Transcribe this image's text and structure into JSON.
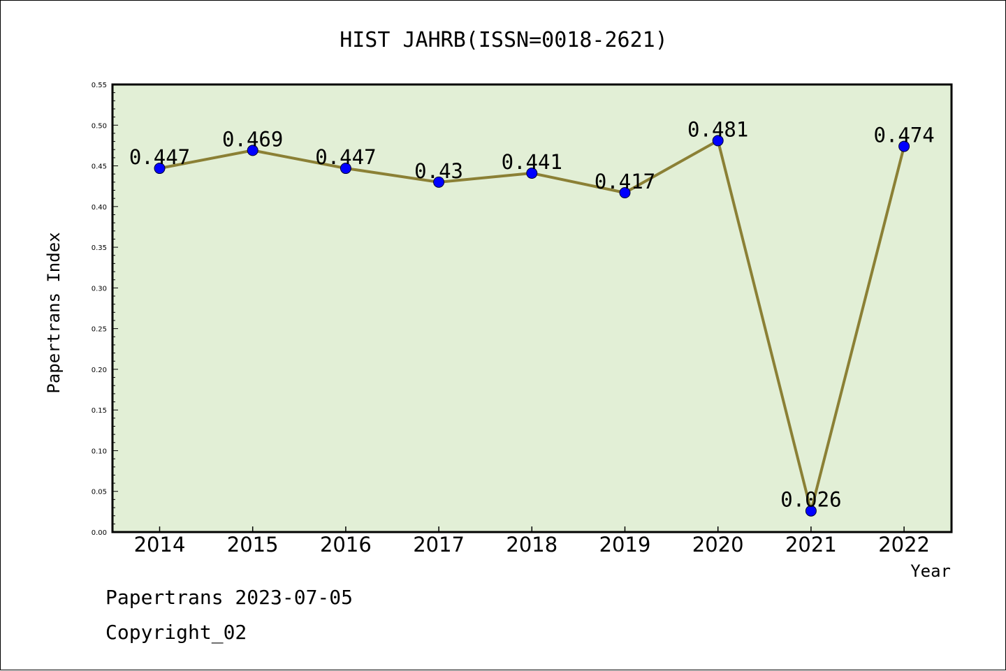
{
  "chart_data": {
    "type": "line",
    "title": "HIST JAHRB(ISSN=0018-2621)",
    "xlabel": "Year",
    "ylabel": "Papertrans Index",
    "categories": [
      "2014",
      "2015",
      "2016",
      "2017",
      "2018",
      "2019",
      "2020",
      "2021",
      "2022"
    ],
    "series": [
      {
        "values": [
          0.447,
          0.469,
          0.447,
          0.43,
          0.441,
          0.417,
          0.481,
          0.026,
          0.474
        ],
        "data_labels": [
          "0.447",
          "0.469",
          "0.447",
          "0.43",
          "0.441",
          "0.417",
          "0.481",
          "0.026",
          "0.474"
        ],
        "line_color": "#8b8035",
        "marker_color": "#0000ff"
      }
    ],
    "yticks": [
      "0.00",
      "0.05",
      "0.10",
      "0.15",
      "0.20",
      "0.25",
      "0.30",
      "0.35",
      "0.40",
      "0.45",
      "0.50",
      "0.55"
    ],
    "ylim": [
      0,
      0.55
    ],
    "grid": false,
    "plot_background": "#e2efd6"
  },
  "footer": {
    "line1": "Papertrans 2023-07-05",
    "line2": "Copyright_02"
  }
}
